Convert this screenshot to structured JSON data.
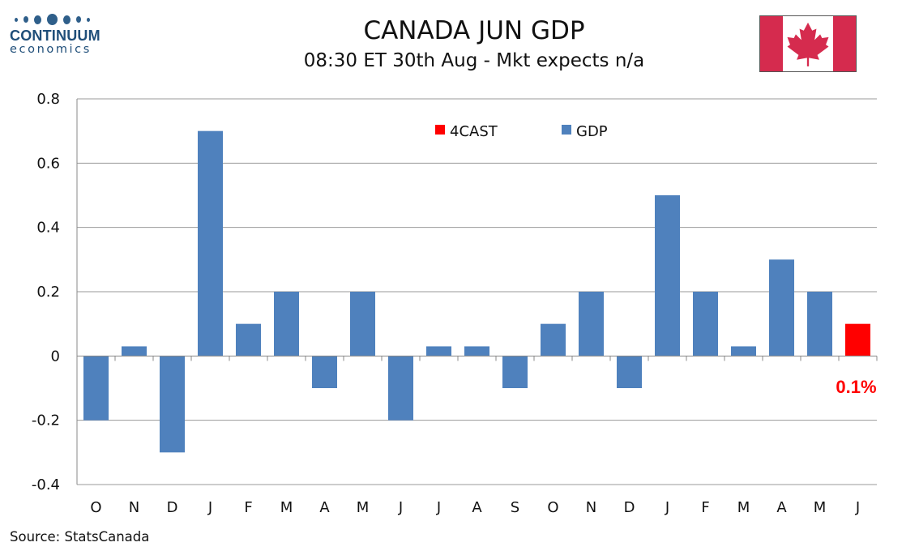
{
  "brand": {
    "name": "CONTINUUM",
    "sub": "economics",
    "color": "#1f4e79"
  },
  "header": {
    "title": "CANADA JUN GDP",
    "subtitle": "08:30 ET 30th Aug - Mkt expects n/a"
  },
  "flag": {
    "icon": "canada-flag-icon",
    "red": "#d52b4e"
  },
  "footer": {
    "source": "Source: StatsCanada"
  },
  "chart_data": {
    "type": "bar",
    "categories": [
      "O",
      "N",
      "D",
      "J",
      "F",
      "M",
      "A",
      "M",
      "J",
      "J",
      "A",
      "S",
      "O",
      "N",
      "D",
      "J",
      "F",
      "M",
      "A",
      "M",
      "J"
    ],
    "series": [
      {
        "name": "GDP",
        "color": "#4f81bd",
        "values": [
          -0.2,
          0.03,
          -0.3,
          0.7,
          0.1,
          0.2,
          -0.1,
          0.2,
          -0.2,
          0.03,
          0.03,
          -0.1,
          0.1,
          0.2,
          -0.1,
          0.5,
          0.2,
          0.03,
          0.3,
          0.2,
          null
        ]
      },
      {
        "name": "4CAST",
        "color": "#ff0000",
        "values": [
          null,
          null,
          null,
          null,
          null,
          null,
          null,
          null,
          null,
          null,
          null,
          null,
          null,
          null,
          null,
          null,
          null,
          null,
          null,
          null,
          0.1
        ]
      }
    ],
    "ylim": [
      -0.4,
      0.8
    ],
    "yticks": [
      -0.4,
      -0.2,
      0,
      0.2,
      0.4,
      0.6,
      0.8
    ],
    "ytick_labels": [
      "-0.4",
      "-0.2",
      "0",
      "0.2",
      "0.4",
      "0.6",
      "0.8"
    ],
    "grid": true,
    "legend_position": "top-right",
    "annotation": {
      "text": "0.1%",
      "color": "#ff0000",
      "category_index": 20
    },
    "title": "",
    "xlabel": "",
    "ylabel": ""
  }
}
